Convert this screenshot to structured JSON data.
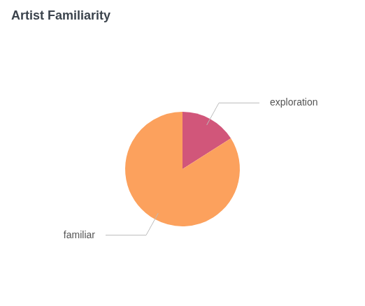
{
  "chart_data": {
    "type": "pie",
    "title": "Artist Familiarity",
    "categories": [
      "exploration",
      "familiar"
    ],
    "values": [
      16,
      84
    ],
    "colors": [
      "#d1567a",
      "#fca15d"
    ]
  }
}
